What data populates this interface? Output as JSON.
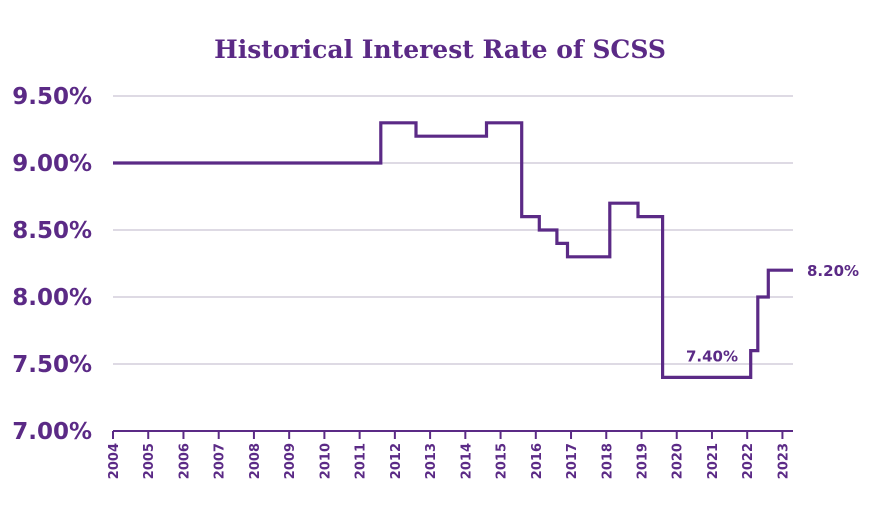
{
  "chart_data": {
    "type": "line",
    "step": true,
    "title": "Historical Interest Rate of SCSS",
    "xlabel": "",
    "ylabel": "",
    "ylim": [
      7.0,
      9.5
    ],
    "xlim": [
      2004,
      2023.3
    ],
    "yticks": [
      {
        "value": 7.0,
        "label": "7.00%"
      },
      {
        "value": 7.5,
        "label": "7.50%"
      },
      {
        "value": 8.0,
        "label": "8.00%"
      },
      {
        "value": 8.5,
        "label": "8.50%"
      },
      {
        "value": 9.0,
        "label": "9.00%"
      },
      {
        "value": 9.5,
        "label": "9.50%"
      }
    ],
    "xticks": [
      "2004",
      "2005",
      "2006",
      "2007",
      "2008",
      "2009",
      "2010",
      "2011",
      "2012",
      "2013",
      "2014",
      "2015",
      "2016",
      "2017",
      "2018",
      "2019",
      "2020",
      "2021",
      "2022",
      "2023"
    ],
    "grid": true,
    "colors": {
      "line": "#5b2a86",
      "grid": "#c9c4d3",
      "text": "#5b2a86"
    },
    "series": [
      {
        "x": [
          2004,
          2011.6,
          2011.6,
          2012.6,
          2012.6,
          2014.6,
          2014.6,
          2015.6,
          2015.6,
          2016.1,
          2016.1,
          2016.6,
          2016.6,
          2016.9,
          2016.9,
          2018.1,
          2018.1,
          2018.9,
          2018.9,
          2019.6,
          2019.6,
          2022.1,
          2022.1,
          2022.3,
          2022.3,
          2022.6,
          2022.6,
          2023.3
        ],
        "y": [
          9.0,
          9.0,
          9.3,
          9.3,
          9.2,
          9.2,
          9.3,
          9.3,
          8.6,
          8.6,
          8.5,
          8.5,
          8.4,
          8.4,
          8.3,
          8.3,
          8.7,
          8.7,
          8.6,
          8.6,
          7.4,
          7.4,
          7.6,
          7.6,
          8.0,
          8.0,
          8.2,
          8.2
        ]
      }
    ],
    "annotations": [
      {
        "text": "7.40%",
        "x": 2021.0,
        "y": 7.4
      },
      {
        "text": "8.20%",
        "x": 2023.3,
        "y": 8.2
      }
    ]
  }
}
